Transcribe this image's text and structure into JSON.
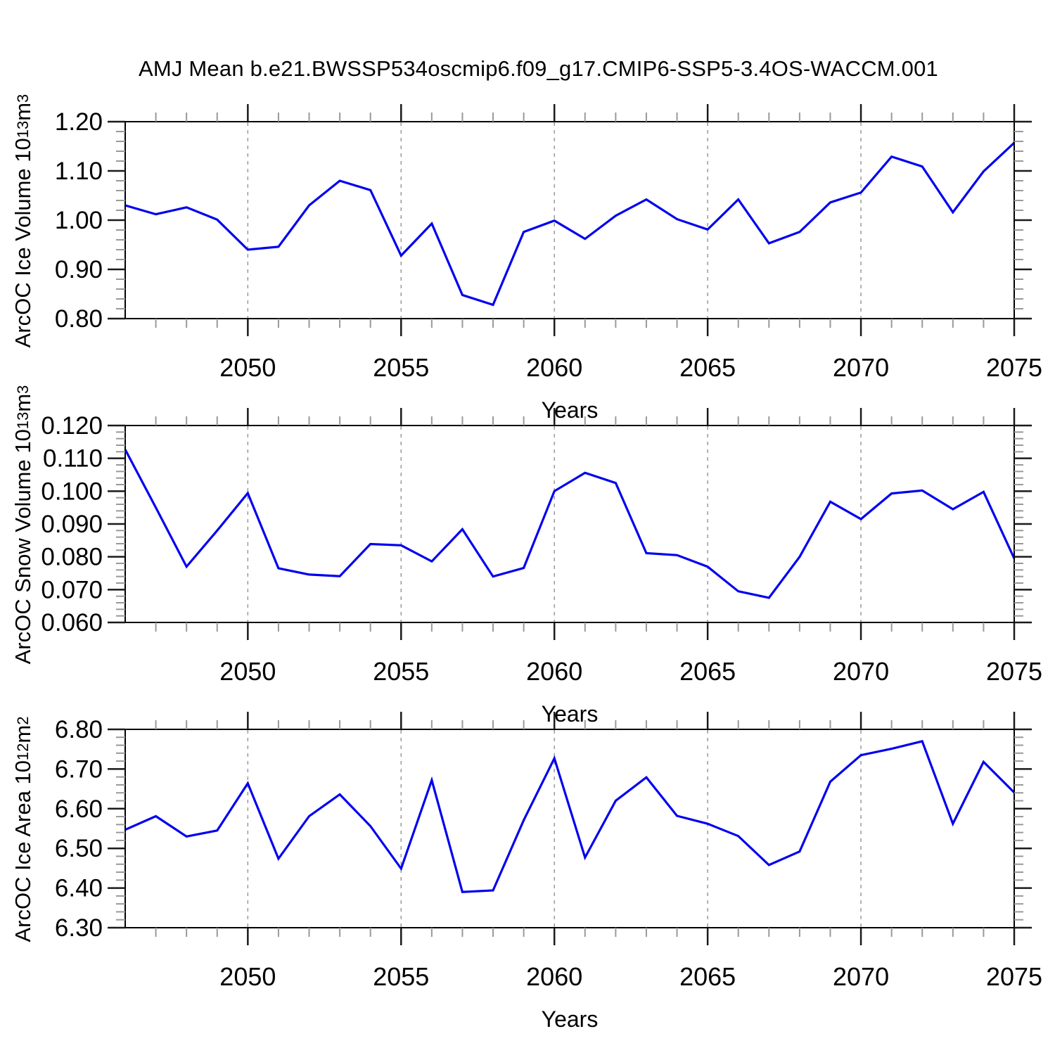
{
  "title": "AMJ Mean b.e21.BWSSP534oscmip6.f09_g17.CMIP6-SSP5-3.4OS-WACCM.001",
  "colors": {
    "line": "#0000f0",
    "grid": "#999999",
    "axis": "#000000",
    "tick_major": "#1a1a1a",
    "tick_minor": "#999999"
  },
  "chart_data": [
    {
      "type": "line",
      "ylabel": {
        "text": "ArcOC Ice Volume 10",
        "exponent": "13",
        "unit": " m",
        "unit_exponent": "3"
      },
      "xlabel": "Years",
      "x": [
        2046,
        2047,
        2048,
        2049,
        2050,
        2051,
        2052,
        2053,
        2054,
        2055,
        2056,
        2057,
        2058,
        2059,
        2060,
        2061,
        2062,
        2063,
        2064,
        2065,
        2066,
        2067,
        2068,
        2069,
        2070,
        2071,
        2072,
        2073,
        2074,
        2075
      ],
      "values": [
        1.03,
        1.012,
        1.026,
        1.001,
        0.94,
        0.946,
        1.03,
        1.08,
        1.061,
        0.928,
        0.993,
        0.848,
        0.828,
        0.976,
        0.999,
        0.962,
        1.009,
        1.042,
        1.002,
        0.981,
        1.042,
        0.953,
        0.976,
        1.036,
        1.056,
        1.129,
        1.109,
        1.016,
        1.099,
        1.157
      ],
      "ylim": [
        0.8,
        1.2
      ],
      "ymajor_step": 0.1,
      "yminor_step": 0.02,
      "ytick_labels": [
        "1.20",
        "1.10",
        "1.00",
        "0.90",
        "0.80"
      ],
      "xlim": [
        2046,
        2075
      ],
      "xtick_years": [
        2050,
        2055,
        2060,
        2065,
        2070,
        2075
      ],
      "xtick_labels": [
        "2050",
        "2055",
        "2060",
        "2065",
        "2070",
        "2075"
      ],
      "grid_years": [
        2050,
        2055,
        2060,
        2065,
        2070
      ],
      "grid": true,
      "legend": "none"
    },
    {
      "type": "line",
      "ylabel": {
        "text": "ArcOC Snow Volume 10",
        "exponent": "13",
        "unit": " m",
        "unit_exponent": "3"
      },
      "xlabel": "Years",
      "x": [
        2046,
        2047,
        2048,
        2049,
        2050,
        2051,
        2052,
        2053,
        2054,
        2055,
        2056,
        2057,
        2058,
        2059,
        2060,
        2061,
        2062,
        2063,
        2064,
        2065,
        2066,
        2067,
        2068,
        2069,
        2070,
        2071,
        2072,
        2073,
        2074,
        2075
      ],
      "values": [
        0.1127,
        0.095,
        0.077,
        0.088,
        0.0994,
        0.0765,
        0.0746,
        0.0741,
        0.0839,
        0.0835,
        0.0786,
        0.0884,
        0.074,
        0.0766,
        0.1,
        0.1056,
        0.1025,
        0.0811,
        0.0805,
        0.077,
        0.0695,
        0.0675,
        0.08,
        0.0968,
        0.0915,
        0.0993,
        0.1002,
        0.0945,
        0.0998,
        0.0795
      ],
      "ylim": [
        0.06,
        0.12
      ],
      "ymajor_step": 0.01,
      "yminor_step": 0.002,
      "ytick_labels": [
        "0.120",
        "0.110",
        "0.100",
        "0.090",
        "0.080",
        "0.070",
        "0.060"
      ],
      "xlim": [
        2046,
        2075
      ],
      "xtick_years": [
        2050,
        2055,
        2060,
        2065,
        2070,
        2075
      ],
      "xtick_labels": [
        "2050",
        "2055",
        "2060",
        "2065",
        "2070",
        "2075"
      ],
      "grid_years": [
        2050,
        2055,
        2060,
        2065,
        2070
      ],
      "grid": true,
      "legend": "none"
    },
    {
      "type": "line",
      "ylabel": {
        "text": "ArcOC Ice Area 10",
        "exponent": "12",
        "unit": " m",
        "unit_exponent": "2"
      },
      "xlabel": "Years",
      "x": [
        2046,
        2047,
        2048,
        2049,
        2050,
        2051,
        2052,
        2053,
        2054,
        2055,
        2056,
        2057,
        2058,
        2059,
        2060,
        2061,
        2062,
        2063,
        2064,
        2065,
        2066,
        2067,
        2068,
        2069,
        2070,
        2071,
        2072,
        2073,
        2074,
        2075
      ],
      "values": [
        6.547,
        6.581,
        6.53,
        6.545,
        6.664,
        6.474,
        6.581,
        6.636,
        6.556,
        6.449,
        6.672,
        6.39,
        6.394,
        6.571,
        6.727,
        6.477,
        6.62,
        6.679,
        6.582,
        6.562,
        6.531,
        6.458,
        6.492,
        6.668,
        6.735,
        6.751,
        6.77,
        6.562,
        6.718,
        6.641
      ],
      "ylim": [
        6.3,
        6.8
      ],
      "ymajor_step": 0.1,
      "yminor_step": 0.02,
      "ytick_labels": [
        "6.80",
        "6.70",
        "6.60",
        "6.50",
        "6.40",
        "6.30"
      ],
      "xlim": [
        2046,
        2075
      ],
      "xtick_years": [
        2050,
        2055,
        2060,
        2065,
        2070,
        2075
      ],
      "xtick_labels": [
        "2050",
        "2055",
        "2060",
        "2065",
        "2070",
        "2075"
      ],
      "grid_years": [
        2050,
        2055,
        2060,
        2065,
        2070
      ],
      "grid": true,
      "legend": "none"
    }
  ]
}
